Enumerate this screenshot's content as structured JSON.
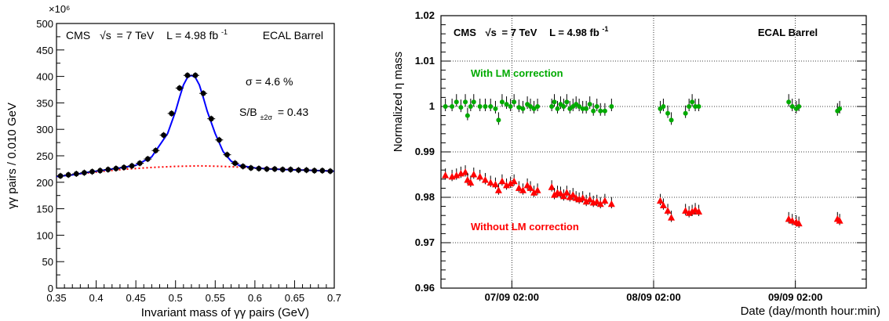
{
  "chart_data": [
    {
      "type": "scatter",
      "title": "",
      "xlabel": "Invariant mass of γγ pairs (GeV)",
      "ylabel": "γγ pairs / 0.010 GeV",
      "xlim": [
        0.35,
        0.7
      ],
      "ylim": [
        0,
        500
      ],
      "y_multiplier_label": "×10⁶",
      "xticks": [
        "0.35",
        "0.4",
        "0.45",
        "0.5",
        "0.55",
        "0.6",
        "0.65",
        "0.7"
      ],
      "yticks": [
        "0",
        "50",
        "100",
        "150",
        "200",
        "250",
        "300",
        "350",
        "400",
        "450",
        "500"
      ],
      "grid": false,
      "annotations": {
        "experiment": "CMS",
        "energy_prefix": "√s",
        "energy_value": "= 7 TeV",
        "lumi_prefix": "L = 4.98 fb",
        "lumi_sup": "-1",
        "detector": "ECAL Barrel",
        "sigma": "σ = 4.6 %",
        "sb_prefix": "S/B",
        "sb_sub": "±2σ",
        "sb_value": "= 0.43"
      },
      "series": [
        {
          "kind": "points",
          "x": [
            0.355,
            0.365,
            0.375,
            0.385,
            0.395,
            0.405,
            0.415,
            0.425,
            0.435,
            0.445,
            0.455,
            0.465,
            0.475,
            0.485,
            0.495,
            0.505,
            0.515,
            0.525,
            0.535,
            0.545,
            0.555,
            0.565,
            0.575,
            0.585,
            0.595,
            0.605,
            0.615,
            0.625,
            0.635,
            0.645,
            0.655,
            0.665,
            0.675,
            0.685,
            0.695
          ],
          "y": [
            212,
            214,
            216,
            218,
            220,
            222,
            224,
            226,
            228,
            231,
            236,
            244,
            260,
            289,
            330,
            378,
            402,
            402,
            368,
            320,
            280,
            252,
            236,
            230,
            227,
            226,
            225,
            225,
            224,
            224,
            223,
            223,
            222,
            222,
            221
          ],
          "color": "#000000"
        },
        {
          "kind": "fit",
          "x": [
            0.35,
            0.37,
            0.39,
            0.41,
            0.43,
            0.45,
            0.47,
            0.49,
            0.5,
            0.505,
            0.51,
            0.515,
            0.52,
            0.525,
            0.53,
            0.535,
            0.54,
            0.55,
            0.56,
            0.57,
            0.58,
            0.6,
            0.62,
            0.64,
            0.66,
            0.68,
            0.7
          ],
          "y": [
            211,
            214,
            219,
            223,
            227,
            232,
            248,
            292,
            334,
            360,
            384,
            398,
            402,
            398,
            384,
            360,
            334,
            292,
            258,
            240,
            232,
            227,
            225,
            224,
            223,
            222,
            221
          ],
          "color": "#0000ff"
        },
        {
          "kind": "background",
          "x": [
            0.35,
            0.38,
            0.41,
            0.44,
            0.47,
            0.5,
            0.53,
            0.56,
            0.59,
            0.62,
            0.65,
            0.68,
            0.7
          ],
          "y": [
            211,
            216,
            221,
            225,
            228,
            230,
            231,
            230,
            228,
            226,
            224,
            222,
            221
          ],
          "color": "#ff0000"
        }
      ]
    },
    {
      "type": "scatter",
      "title": "",
      "xlabel": "Date (day/month hour:min)",
      "ylabel": "Normalized η mass",
      "xlim": [
        0,
        96
      ],
      "ylim": [
        0.96,
        1.02
      ],
      "xticks": [
        {
          "x": 16,
          "label": "07/09 02:00"
        },
        {
          "x": 48,
          "label": "08/09 02:00"
        },
        {
          "x": 80,
          "label": "09/09 02:00"
        }
      ],
      "yticks": [
        "0.96",
        "0.97",
        "0.98",
        "0.99",
        "1",
        "1.01",
        "1.02"
      ],
      "grid": true,
      "annotations": {
        "experiment": "CMS",
        "energy_prefix": "√s",
        "energy_value": "= 7 TeV",
        "lumi_prefix": "L = 4.98 fb",
        "lumi_sup": "-1",
        "detector": "ECAL Barrel"
      },
      "series": [
        {
          "name": "With LM correction",
          "color": "#00aa00",
          "marker": "circle",
          "x": [
            1,
            2.5,
            3.5,
            4.5,
            5.5,
            6,
            6.7,
            7.4,
            8.8,
            10,
            11.2,
            12.3,
            13,
            13.8,
            14.8,
            15.7,
            16.5,
            17.6,
            18.5,
            19.5,
            20.2,
            21,
            21.8,
            25,
            25.6,
            26.3,
            27,
            27.7,
            28.4,
            29.1,
            29.8,
            30.5,
            31.2,
            32,
            32.8,
            33.6,
            34.4,
            35.2,
            36,
            37,
            38.5,
            49.5,
            50.2,
            51.2,
            52,
            55.2,
            56,
            56.7,
            57.4,
            58.2,
            78.5,
            79.3,
            80.2,
            80.8,
            89.5,
            90
          ],
          "y": [
            1.0,
            1.0,
            1.001,
            0.9998,
            1.001,
            0.998,
            1.0,
            1.001,
            1.0,
            1.0,
            1.0,
            0.9995,
            0.997,
            1.001,
            1.0005,
            1.0,
            1.001,
            0.9998,
            0.9995,
            1.0005,
            1.0,
            0.9995,
            1.0,
            1.0,
            1.001,
            0.9995,
            1.0005,
            1.0,
            1.001,
            0.9995,
            1.0,
            1.0005,
            1.0,
            0.9995,
            0.9995,
            1.0005,
            0.999,
            1.0,
            0.999,
            0.999,
            1.0,
            0.9995,
            1.0,
            0.9985,
            0.997,
            0.9985,
            1.0,
            1.001,
            1.0,
            1.0,
            1.001,
            1.0,
            0.9995,
            1.0,
            0.999,
            0.9995
          ]
        },
        {
          "name": "Without LM correction",
          "color": "#ff0000",
          "marker": "triangle",
          "x": [
            1,
            2.5,
            3.5,
            4.5,
            5.5,
            6,
            6.7,
            7.4,
            8.8,
            10,
            11.2,
            12.3,
            13,
            13.8,
            14.8,
            15.7,
            16.5,
            17.6,
            18.5,
            19.5,
            20.2,
            21,
            21.8,
            25,
            25.6,
            26.3,
            27,
            27.7,
            28.4,
            29.1,
            29.8,
            30.5,
            31.2,
            32,
            32.8,
            33.6,
            34.4,
            35.2,
            36,
            37,
            38.5,
            49.5,
            50.2,
            51.2,
            52,
            55.2,
            56,
            56.7,
            57.4,
            58.2,
            78.5,
            79.3,
            80.2,
            80.8,
            89.5,
            90
          ],
          "y": [
            0.9848,
            0.9845,
            0.9848,
            0.9852,
            0.9855,
            0.9838,
            0.9832,
            0.985,
            0.9845,
            0.9838,
            0.9832,
            0.9828,
            0.9815,
            0.9835,
            0.9826,
            0.983,
            0.9835,
            0.982,
            0.9815,
            0.9826,
            0.982,
            0.981,
            0.9815,
            0.9822,
            0.9805,
            0.981,
            0.9808,
            0.9802,
            0.981,
            0.98,
            0.9805,
            0.9798,
            0.9795,
            0.9798,
            0.979,
            0.9795,
            0.9788,
            0.979,
            0.9785,
            0.9792,
            0.9785,
            0.9792,
            0.9782,
            0.977,
            0.9755,
            0.977,
            0.9765,
            0.9768,
            0.9772,
            0.9768,
            0.9752,
            0.9748,
            0.9745,
            0.9742,
            0.9752,
            0.9748
          ]
        }
      ]
    }
  ]
}
